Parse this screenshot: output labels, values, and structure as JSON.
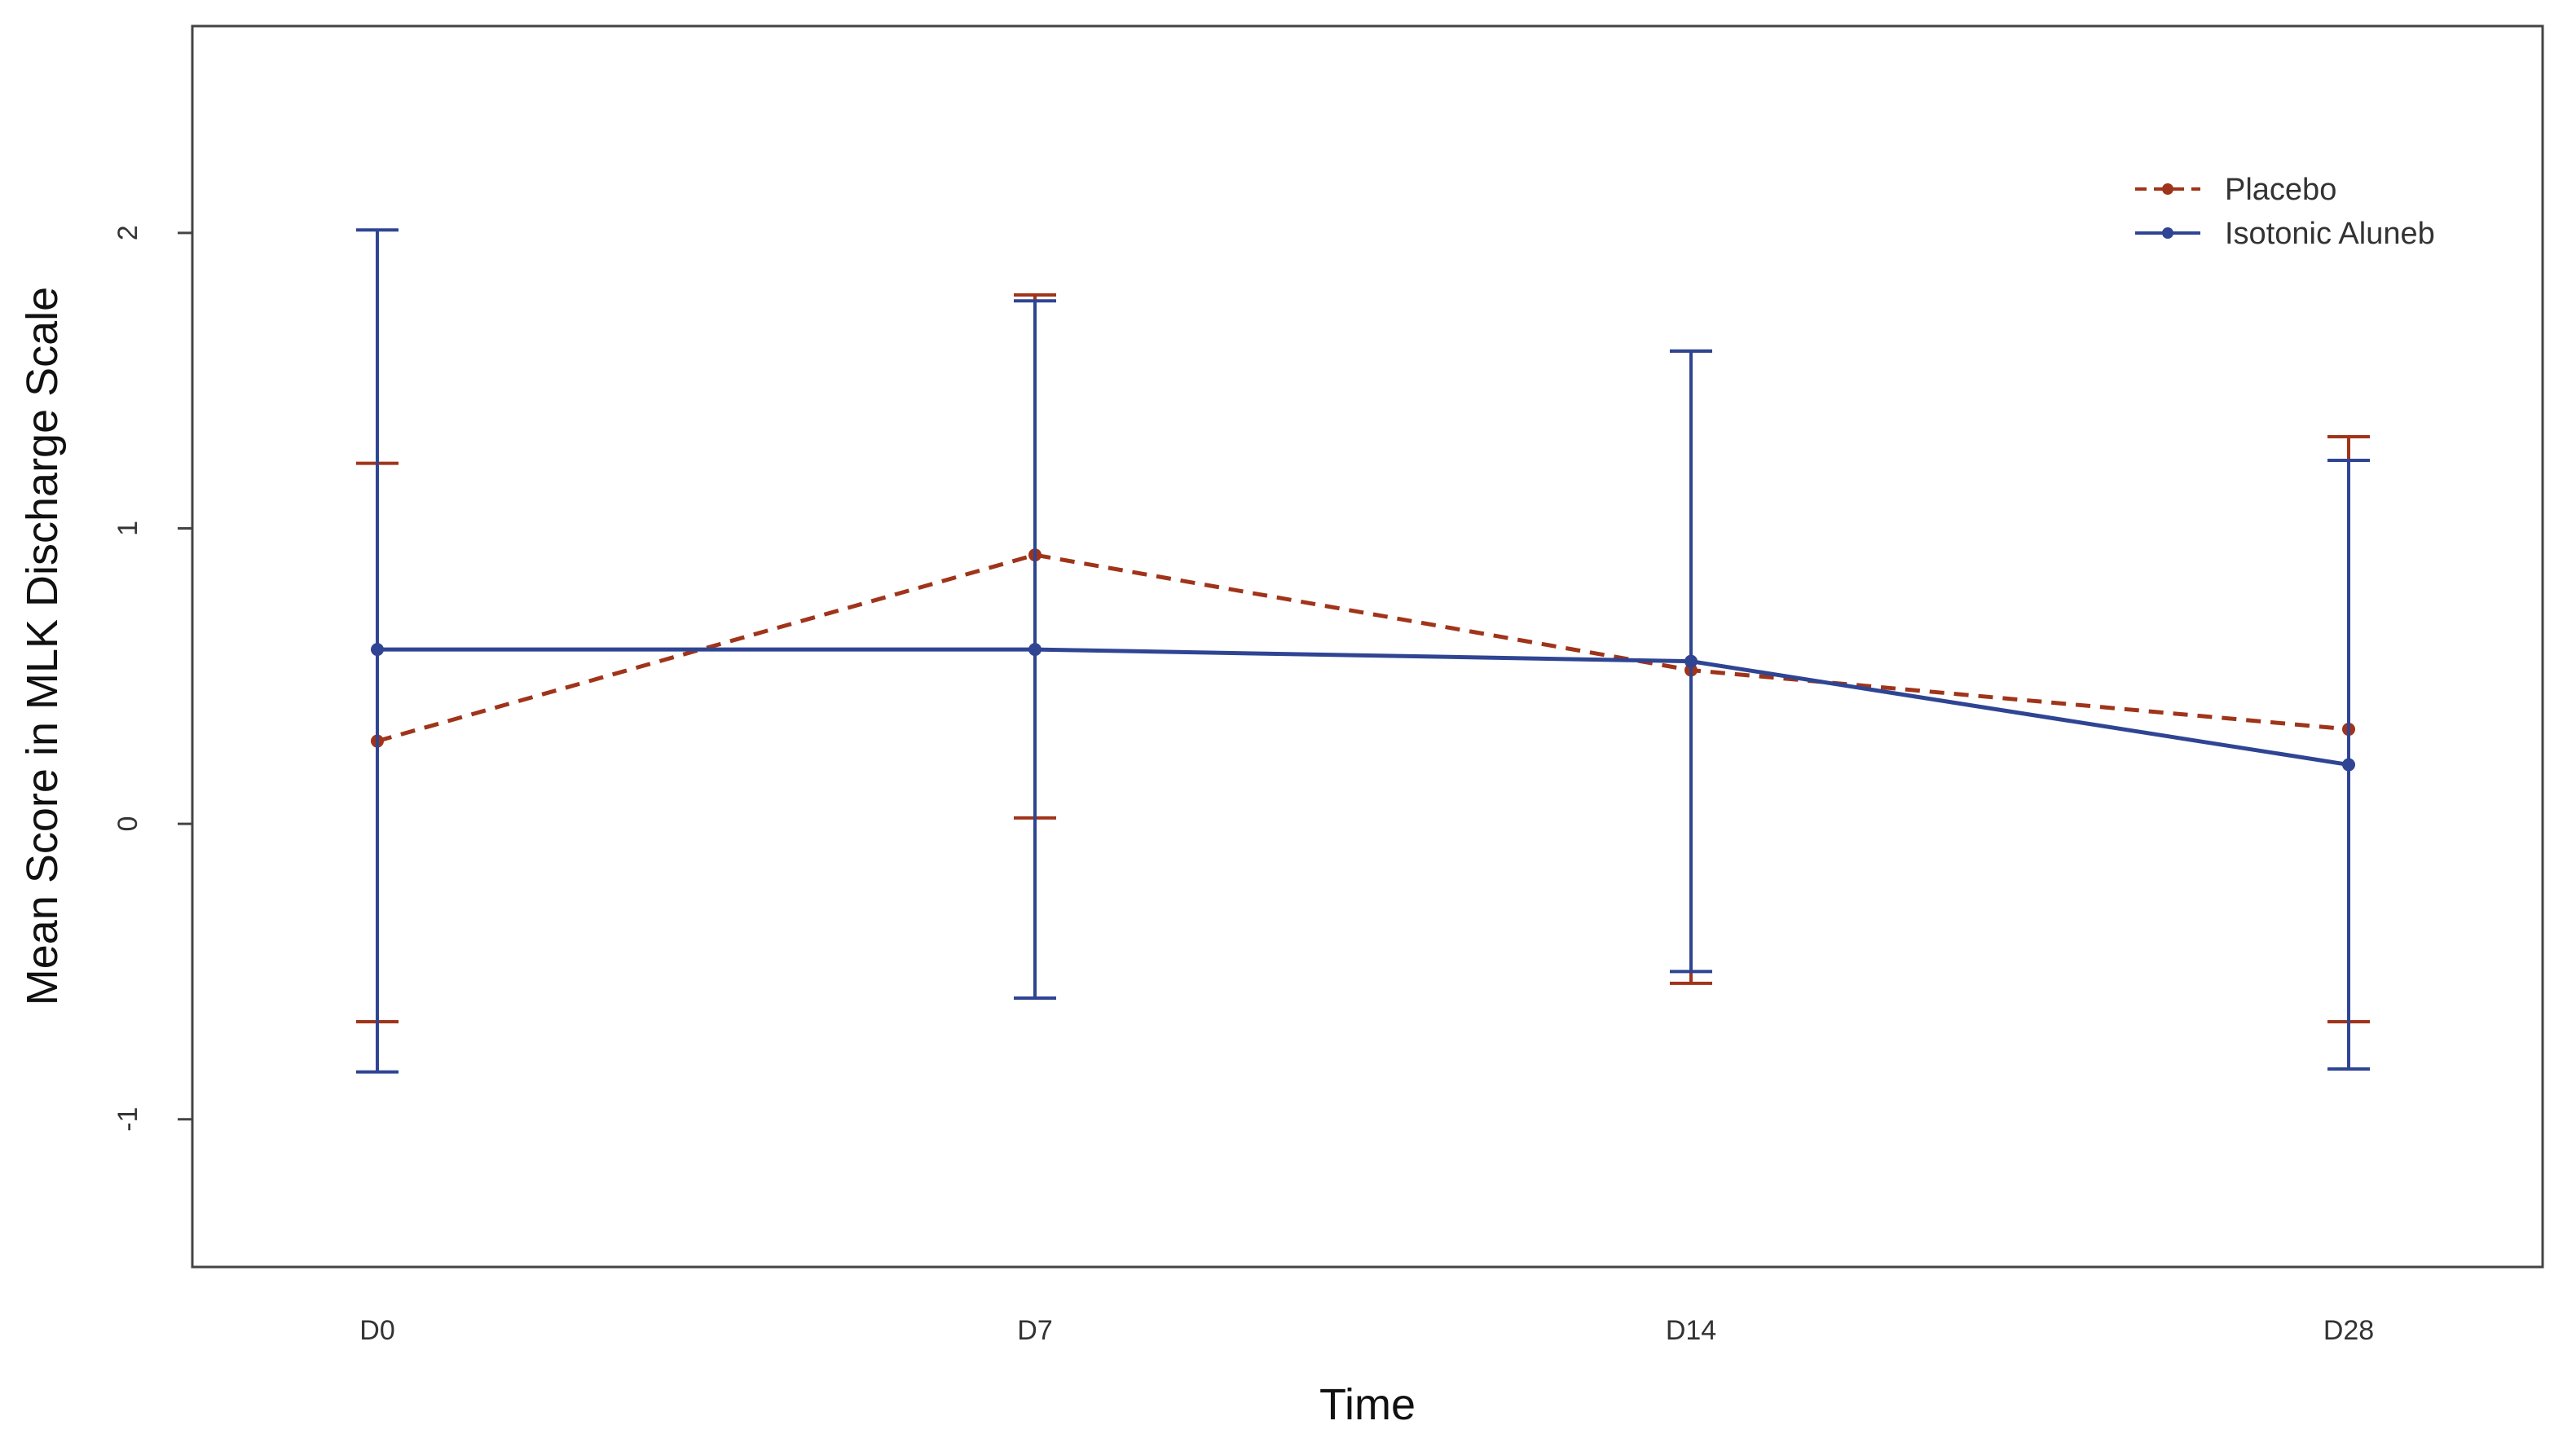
{
  "chart_data": {
    "type": "line",
    "title": "",
    "xlabel": "Time",
    "ylabel": "Mean Score in MLK Discharge Scale",
    "categories": [
      "D0",
      "D7",
      "D14",
      "D28"
    ],
    "ylim": [
      -1.5,
      2.7
    ],
    "yticks": [
      -1,
      0,
      1,
      2
    ],
    "grid": false,
    "legend_position": "top-right",
    "error_bars": true,
    "series": [
      {
        "name": "Placebo",
        "color": "#A0341A",
        "line_style": "dashed",
        "values": [
          0.28,
          0.91,
          0.52,
          0.32
        ],
        "lower": [
          -0.67,
          0.02,
          -0.54,
          -0.67
        ],
        "upper": [
          1.22,
          1.79,
          1.6,
          1.31
        ]
      },
      {
        "name": "Isotonic Aluneb",
        "color": "#2F4593",
        "line_style": "solid",
        "values": [
          0.59,
          0.59,
          0.55,
          0.2
        ],
        "lower": [
          -0.84,
          -0.59,
          -0.5,
          -0.83
        ],
        "upper": [
          2.01,
          1.77,
          1.6,
          1.23
        ]
      }
    ]
  }
}
